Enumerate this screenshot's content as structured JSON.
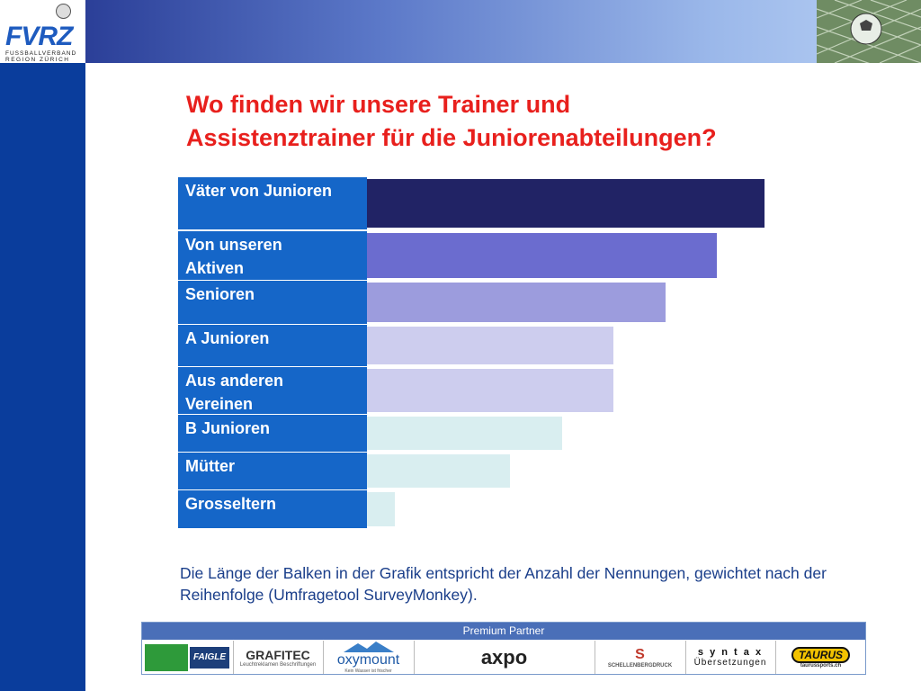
{
  "header": {
    "logo_text": "FVRZ",
    "logo_sub1": "FUSSBALLVERBAND",
    "logo_sub2": "REGION ZÜRICH"
  },
  "title_line1": "Wo finden wir unsere Trainer und",
  "title_line2": "Assistenztrainer für die Juniorenabteilungen?",
  "chart_data": {
    "type": "bar",
    "orientation": "horizontal",
    "title": "Wo finden wir unsere Trainer und Assistenztrainer für die Juniorenabteilungen?",
    "categories": [
      "Väter von Junioren",
      "Von unseren Aktiven",
      "Senioren",
      "A Junioren",
      "Aus anderen Vereinen",
      "B Junioren",
      "Mütter",
      "Grosseltern"
    ],
    "label_lines": [
      [
        "Väter von Junioren"
      ],
      [
        "Von unseren",
        "Aktiven"
      ],
      [
        "Senioren"
      ],
      [
        "A Junioren"
      ],
      [
        "Aus anderen",
        "Vereinen"
      ],
      [
        "B Junioren"
      ],
      [
        "Mütter"
      ],
      [
        "Grosseltern"
      ]
    ],
    "values": [
      100,
      88,
      75,
      62,
      62,
      49,
      36,
      7
    ],
    "colors": [
      "#212365",
      "#6b6ccf",
      "#9c9cdd",
      "#cdcdee",
      "#cdcdee",
      "#d9eef0",
      "#d9eef0",
      "#d9eef0"
    ],
    "xlim": [
      0,
      100
    ],
    "xlabel": "",
    "ylabel": ""
  },
  "footnote": "Die Länge der Balken in der Grafik entspricht der Anzahl der Nennungen, gewichtet nach der Reihenfolge (Umfragetool SurveyMonkey).",
  "sponsors": {
    "header": "Premium Partner",
    "items": [
      "FAIGLE",
      "GRAFITEC",
      "oxymount",
      "axpo",
      "SCHELLENBERGDRUCK",
      "syntax Übersetzungen",
      "TAURUS"
    ],
    "grafitec_sub": "Leuchtreklamen Beschriftungen",
    "oxymount_sub": "Kein Wasser ist frischer",
    "syntax_top": "s y n t a x",
    "syntax_bottom": "Übersetzungen",
    "taurus_sub": "taurussports.ch"
  },
  "colors": {
    "title": "#e8201d",
    "label_bg": "#1566c8",
    "left_bar": "#0a3d9c"
  }
}
